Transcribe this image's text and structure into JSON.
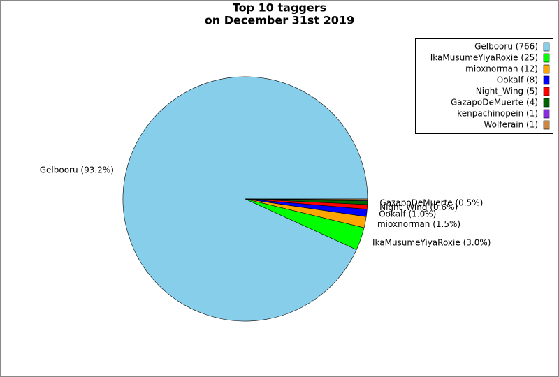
{
  "chart_data": {
    "type": "pie",
    "title": [
      "Top 10 taggers",
      "on December 31st 2019"
    ],
    "categories": [
      "Gelbooru",
      "IkaMusumeYiyaRoxie",
      "mioxnorman",
      "Ookalf",
      "Night_Wing",
      "GazapoDeMuerte",
      "kenpachinopein",
      "Wolferain"
    ],
    "values": [
      766,
      25,
      12,
      8,
      5,
      4,
      1,
      1
    ],
    "value_labels": [
      "Gelbooru (93.2%)",
      "IkaMusumeYiyaRoxie (3.0%)",
      "mioxnorman (1.5%)",
      "Ookalf (1.0%)",
      "Night_Wing (0.6%)",
      "GazapoDeMuerte (0.5%)",
      null,
      null
    ],
    "legend_labels": [
      "Gelbooru (766)",
      "IkaMusumeYiyaRoxie (25)",
      "mioxnorman (12)",
      "Ookalf (8)",
      "Night_Wing (5)",
      "GazapoDeMuerte (4)",
      "kenpachinopein (1)",
      "Wolferain (1)"
    ],
    "colors": [
      "#87ceeb",
      "#00ff00",
      "#ffa500",
      "#0000ff",
      "#ff0000",
      "#006400",
      "#8a2be2",
      "#cd853f"
    ],
    "legend": "upper right"
  }
}
